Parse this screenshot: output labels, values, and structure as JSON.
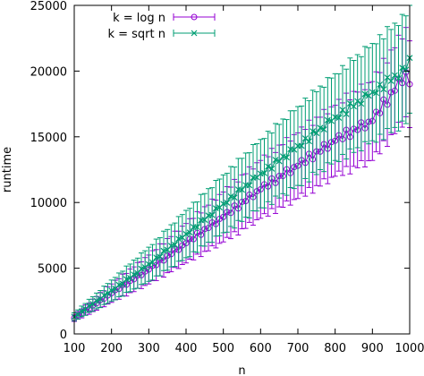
{
  "chart_data": {
    "type": "scatter",
    "xlabel": "n",
    "ylabel": "runtime",
    "xlim": [
      100,
      1000
    ],
    "ylim": [
      0,
      25000
    ],
    "xticks": [
      "100",
      "200",
      "300",
      "400",
      "500",
      "600",
      "700",
      "800",
      "900",
      "1000"
    ],
    "yticks": [
      "0",
      "5000",
      "10000",
      "15000",
      "20000",
      "25000"
    ],
    "grid": false,
    "legend_position": "top-left",
    "x": [
      100,
      200,
      300,
      400,
      500,
      600,
      700,
      800,
      900,
      990,
      1000
    ],
    "series": [
      {
        "name": "k = log n",
        "color": "#9400d3",
        "marker": "circle",
        "y": [
          1200,
          3100,
          4900,
          6900,
          8900,
          11000,
          12800,
          14700,
          16200,
          19800,
          19000
        ],
        "err": [
          250,
          700,
          1100,
          1500,
          1900,
          2200,
          2500,
          2700,
          3000,
          3400,
          3300
        ]
      },
      {
        "name": "k = sqrt n",
        "color": "#009e73",
        "marker": "x",
        "y": [
          1300,
          3300,
          5300,
          7600,
          9900,
          12200,
          14300,
          16500,
          18400,
          20200,
          21000
        ],
        "err": [
          300,
          800,
          1300,
          1800,
          2200,
          2600,
          3000,
          3300,
          3700,
          4100,
          4200
        ]
      }
    ]
  }
}
